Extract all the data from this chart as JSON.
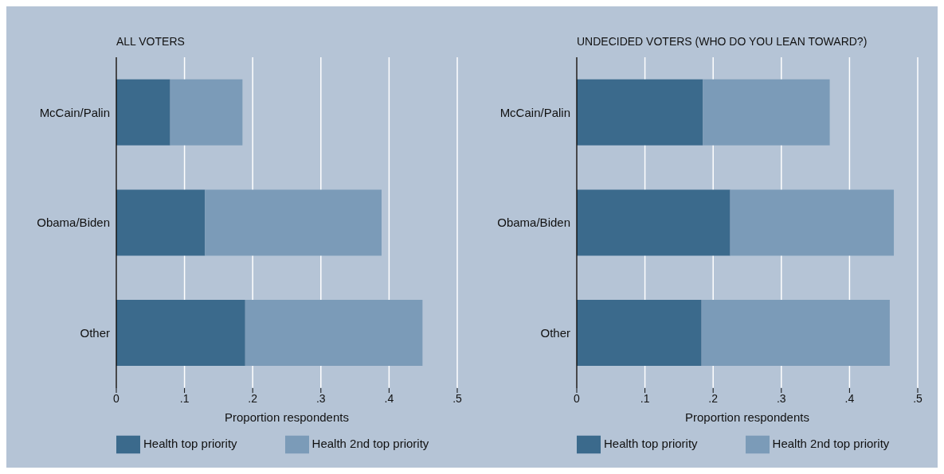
{
  "chart_data": [
    {
      "type": "bar",
      "orientation": "horizontal",
      "stacked": true,
      "title": "ALL VOTERS",
      "xlabel": "Proportion respondents",
      "categories": [
        "McCain/Palin",
        "Obama/Biden",
        "Other"
      ],
      "series": [
        {
          "name": "Health top priority",
          "color": "#3b6a8c",
          "values": [
            0.079,
            0.13,
            0.189
          ]
        },
        {
          "name": "Health 2nd top priority",
          "color": "#7b9bb8",
          "values": [
            0.106,
            0.259,
            0.26
          ]
        }
      ],
      "xlim": [
        0,
        0.5
      ],
      "xticks": [
        0,
        {
          "value": 0.1,
          "label": ".1"
        },
        {
          "value": 0.2,
          "label": ".2"
        },
        {
          "value": 0.3,
          "label": ".3"
        },
        {
          "value": 0.4,
          "label": ".4"
        },
        {
          "value": 0.5,
          "label": ".5"
        }
      ],
      "grid": "x",
      "legend": "bottom"
    },
    {
      "type": "bar",
      "orientation": "horizontal",
      "stacked": true,
      "title": "UNDECIDED VOTERS (WHO DO YOU LEAN TOWARD?)",
      "xlabel": "Proportion respondents",
      "categories": [
        "McCain/Palin",
        "Obama/Biden",
        "Other"
      ],
      "series": [
        {
          "name": "Health top priority",
          "color": "#3b6a8c",
          "values": [
            0.185,
            0.225,
            0.183
          ]
        },
        {
          "name": "Health 2nd top priority",
          "color": "#7b9bb8",
          "values": [
            0.186,
            0.24,
            0.276
          ]
        }
      ],
      "xlim": [
        0,
        0.5
      ],
      "xticks": [
        0,
        {
          "value": 0.1,
          "label": ".1"
        },
        {
          "value": 0.2,
          "label": ".2"
        },
        {
          "value": 0.3,
          "label": ".3"
        },
        {
          "value": 0.4,
          "label": ".4"
        },
        {
          "value": 0.5,
          "label": ".5"
        }
      ],
      "grid": "x",
      "legend": "bottom"
    }
  ]
}
